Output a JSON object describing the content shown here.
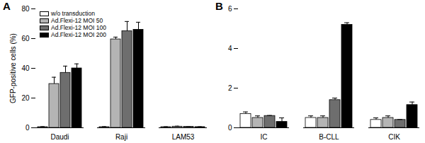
{
  "chart_data": [
    {
      "type": "bar",
      "title": "A",
      "y_label": "GFP-positive cells (%)",
      "categories": [
        "Daudi",
        "Raji",
        "LAM53"
      ],
      "ylim": [
        0,
        80
      ],
      "yticks": [
        0,
        20,
        40,
        60,
        80
      ],
      "legend": "top-left",
      "series": [
        {
          "name": "w/o transduction",
          "color": "#ffffff",
          "values": [
            0.5,
            0.5,
            0.5
          ],
          "errors": [
            0.3,
            0.3,
            0.2
          ]
        },
        {
          "name": "Ad.Flexi-12 MOI 50",
          "color": "#b4b4b4",
          "values": [
            29.5,
            59.5,
            0.8
          ],
          "errors": [
            4.5,
            1.5,
            0.3
          ]
        },
        {
          "name": "Ad.Flexi-12 MOI 100",
          "color": "#6e6e6e",
          "values": [
            37,
            65,
            0.7
          ],
          "errors": [
            4.5,
            6.5,
            0.2
          ]
        },
        {
          "name": "Ad.Flexi-12 MOI 200",
          "color": "#000000",
          "values": [
            40,
            66,
            0.5
          ],
          "errors": [
            3,
            5,
            0.2
          ]
        }
      ]
    },
    {
      "type": "bar",
      "title": "B",
      "categories": [
        "IC",
        "B-CLL",
        "CIK"
      ],
      "ylim": [
        0,
        6
      ],
      "yticks": [
        0,
        2,
        4,
        6
      ],
      "series": [
        {
          "name": "w/o transduction",
          "color": "#ffffff",
          "values": [
            0.7,
            0.5,
            0.4
          ],
          "errors": [
            0.1,
            0.1,
            0.1
          ]
        },
        {
          "name": "Ad.Flexi-12 MOI 50",
          "color": "#b4b4b4",
          "values": [
            0.5,
            0.5,
            0.5
          ],
          "errors": [
            0.1,
            0.1,
            0.1
          ]
        },
        {
          "name": "Ad.Flexi-12 MOI 100",
          "color": "#6e6e6e",
          "values": [
            0.6,
            1.4,
            0.4
          ],
          "errors": [
            0.02,
            0.1,
            0.02
          ]
        },
        {
          "name": "Ad.Flexi-12 MOI 200",
          "color": "#000000",
          "values": [
            0.3,
            5.2,
            1.15
          ],
          "errors": [
            0.2,
            0.1,
            0.15
          ]
        }
      ]
    }
  ]
}
